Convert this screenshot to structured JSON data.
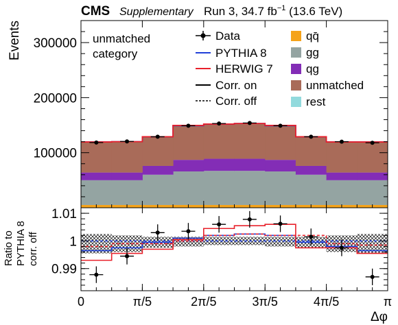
{
  "header": {
    "experiment": "CMS",
    "tag": "Supplementary",
    "run": "Run 3, 34.7 fb",
    "run_sup": "−1",
    "energy": " (13.6 TeV)"
  },
  "annotation": [
    "unmatched",
    "category"
  ],
  "legend": {
    "left": [
      {
        "key": "data",
        "label": "Data"
      },
      {
        "key": "pythia",
        "label": "PYTHIA 8",
        "color": "#1f3fd8"
      },
      {
        "key": "herwig",
        "label": "HERWIG 7",
        "color": "#e8202a"
      },
      {
        "key": "corr_on",
        "label": "Corr. on"
      },
      {
        "key": "corr_off",
        "label": "Corr. off"
      }
    ],
    "right": [
      {
        "key": "qqbar",
        "label": "qq̄",
        "color": "#f5a31a"
      },
      {
        "key": "gg",
        "label": "gg",
        "color": "#94a4a2"
      },
      {
        "key": "qg",
        "label": "qg",
        "color": "#832db6"
      },
      {
        "key": "unmatched",
        "label": "unmatched",
        "color": "#a96b59"
      },
      {
        "key": "rest",
        "label": "rest",
        "color": "#92dadd"
      }
    ]
  },
  "chart_data": [
    {
      "type": "area",
      "panel": "main",
      "ylabel": "Events",
      "ylim": [
        0,
        340000
      ],
      "yticks": [
        100000,
        200000,
        300000
      ],
      "ytick_labels": [
        "100000",
        "200000",
        "300000"
      ],
      "xlim": [
        0,
        3.14159
      ],
      "bin_edges": [
        0,
        0.31416,
        0.62832,
        0.94248,
        1.25664,
        1.5708,
        1.88496,
        2.19911,
        2.51327,
        2.82743,
        3.14159
      ],
      "stack": [
        {
          "name": "qq̄",
          "color": "#f5a31a",
          "values": [
            5000,
            5000,
            5000,
            5000,
            5000,
            5000,
            5000,
            5000,
            5000,
            5000
          ]
        },
        {
          "name": "gg",
          "color": "#94a4a2",
          "values": [
            45000,
            45000,
            55000,
            61000,
            62000,
            62000,
            61000,
            55000,
            45000,
            45000
          ]
        },
        {
          "name": "qg",
          "color": "#832db6",
          "values": [
            14000,
            14000,
            16000,
            21000,
            22000,
            22000,
            21000,
            16000,
            14000,
            14000
          ]
        },
        {
          "name": "unmatched",
          "color": "#a96b59",
          "values": [
            56000,
            56000,
            53000,
            62000,
            63000,
            63000,
            62000,
            53000,
            56000,
            56000
          ]
        },
        {
          "name": "rest",
          "color": "#92dadd",
          "values": [
            0,
            0,
            0,
            0,
            0,
            0,
            0,
            0,
            0,
            0
          ]
        }
      ],
      "series": [
        {
          "name": "Data",
          "type": "points",
          "values": [
            118500,
            120500,
            129000,
            149000,
            153000,
            154000,
            149000,
            129000,
            120000,
            118000
          ]
        },
        {
          "name": "PYTHIA 8",
          "color": "#1f3fd8",
          "values": [
            119500,
            120000,
            129000,
            149000,
            152000,
            153000,
            149000,
            129000,
            119500,
            119500
          ]
        },
        {
          "name": "HERWIG 7",
          "color": "#e8202a",
          "values": [
            119500,
            120000,
            129000,
            149500,
            152000,
            153000,
            149500,
            129000,
            119500,
            119500
          ]
        }
      ]
    },
    {
      "type": "line",
      "panel": "ratio",
      "ylabel": "Ratio to PYTHIA 8 corr. off",
      "ylim": [
        0.982,
        1.012
      ],
      "yticks": [
        0.99,
        1.0,
        1.01
      ],
      "ytick_labels": [
        "0.99",
        "1",
        "1.01"
      ],
      "xlabel": "Δφ",
      "xlim": [
        0,
        3.14159
      ],
      "xticks": [
        0,
        0.62832,
        1.25664,
        1.88496,
        2.51327,
        3.14159
      ],
      "xtick_labels": [
        "0",
        "π/5",
        "2π/5",
        "3π/5",
        "4π/5",
        "π"
      ],
      "bin_edges": [
        0,
        0.31416,
        0.62832,
        0.94248,
        1.25664,
        1.5708,
        1.88496,
        2.19911,
        2.51327,
        2.82743,
        3.14159
      ],
      "band": {
        "lower": [
          0.9955,
          0.996,
          0.9975,
          0.998,
          0.9985,
          0.9985,
          0.998,
          0.9975,
          0.996,
          0.9955
        ],
        "upper": [
          1.0025,
          1.002,
          1.0015,
          1.0015,
          1.0015,
          1.0015,
          1.0015,
          1.0015,
          1.002,
          1.0025
        ]
      },
      "series": [
        {
          "name": "Data",
          "type": "points",
          "values": [
            0.9878,
            0.9945,
            1.003,
            1.0035,
            1.006,
            1.0078,
            1.0062,
            1.0015,
            0.9975,
            0.987
          ],
          "errors": [
            0.003,
            0.003,
            0.003,
            0.003,
            0.003,
            0.003,
            0.003,
            0.003,
            0.003,
            0.003
          ]
        },
        {
          "name": "PYTHIA 8 corr. on",
          "color": "#1f3fd8",
          "style": "solid",
          "values": [
            0.9965,
            0.9975,
            0.9995,
            1.001,
            1.002,
            1.0025,
            1.002,
            0.9995,
            0.998,
            0.9965
          ]
        },
        {
          "name": "PYTHIA 8 corr. off",
          "color": "#1f3fd8",
          "style": "dashed",
          "values": [
            1.0,
            1.0,
            1.0,
            1.0,
            1.0,
            1.0,
            1.0,
            1.0,
            1.0,
            1.0
          ]
        },
        {
          "name": "HERWIG 7 corr. on",
          "color": "#e8202a",
          "style": "solid",
          "values": [
            0.993,
            0.9955,
            0.997,
            1.0005,
            1.0045,
            1.0055,
            1.006,
            0.9975,
            0.9975,
            0.9955
          ]
        },
        {
          "name": "HERWIG 7 corr. off",
          "color": "#e8202a",
          "style": "dashed",
          "values": [
            0.998,
            0.999,
            0.999,
            1.0,
            1.002,
            1.0025,
            1.002,
            1.002,
            0.999,
            0.9985
          ]
        }
      ]
    }
  ]
}
